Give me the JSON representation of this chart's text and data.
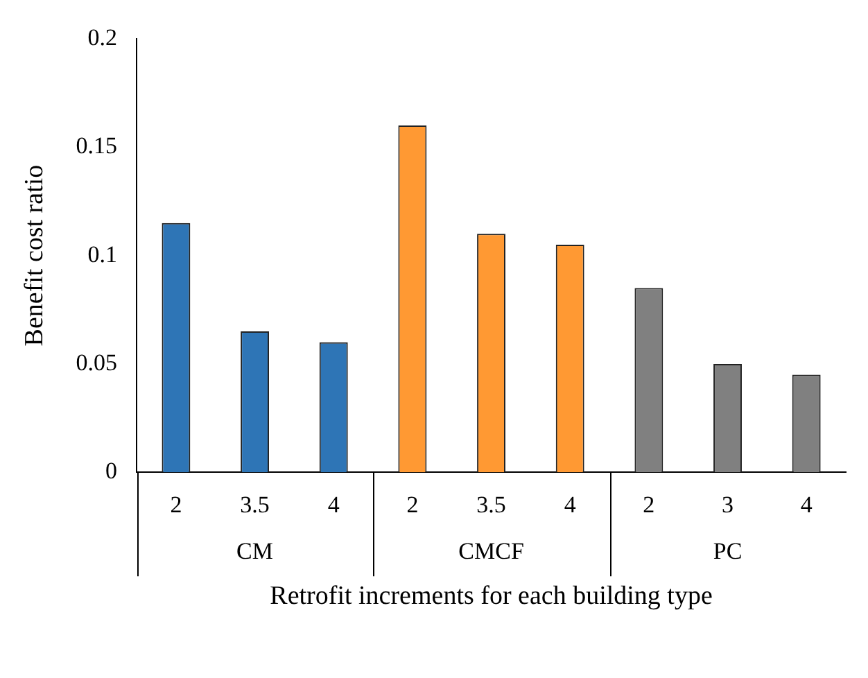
{
  "chart_data": {
    "type": "bar",
    "xlabel": "Retrofit increments for each building type",
    "ylabel": "Benefit cost ratio",
    "categories": [
      "2",
      "3.5",
      "4",
      "2",
      "3.5",
      "4",
      "2",
      "3",
      "4"
    ],
    "series": [
      {
        "name": "CM",
        "color": "#2e75b6",
        "values": [
          0.115,
          0.065,
          0.06,
          null,
          null,
          null,
          null,
          null,
          null
        ]
      },
      {
        "name": "CMCF",
        "color": "#ff9933",
        "values": [
          null,
          null,
          null,
          0.16,
          0.11,
          0.105,
          null,
          null,
          null
        ]
      },
      {
        "name": "PC",
        "color": "#808080",
        "values": [
          null,
          null,
          null,
          null,
          null,
          null,
          0.085,
          0.05,
          0.045
        ]
      }
    ],
    "ylim": [
      0,
      0.2
    ],
    "yticks": [
      0,
      0.05,
      0.1,
      0.15,
      0.2
    ],
    "grid": false,
    "legend": false
  }
}
